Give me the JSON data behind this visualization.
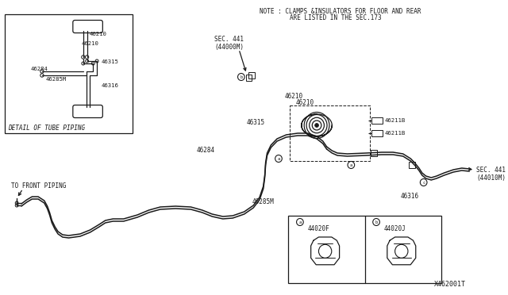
{
  "bg_color": "#ffffff",
  "line_color": "#1a1a1a",
  "text_color": "#1a1a1a",
  "title_text": "X462001T",
  "note_line1": "NOTE : CLAMPS &INSULATORS FOR FLOOR AND REAR",
  "note_line2": "ARE LISTED IN THE SEC.173",
  "inset_label": "DETAIL OF TUBE PIPING",
  "sec441_44000M": "SEC. 441\n(44000M)",
  "sec441_44010M": "SEC. 441\n(44010M)",
  "front_piping": "TO FRONT PIPING",
  "parts": {
    "inset": [
      "46210",
      "46210",
      "46284",
      "46285M",
      "46315",
      "46316"
    ],
    "main_top": [
      "46210",
      "46210",
      "46315",
      "46284",
      "46285M",
      "46316",
      "46211B",
      "46211B"
    ]
  },
  "caliper_labels": [
    "44020F",
    "44020J"
  ]
}
